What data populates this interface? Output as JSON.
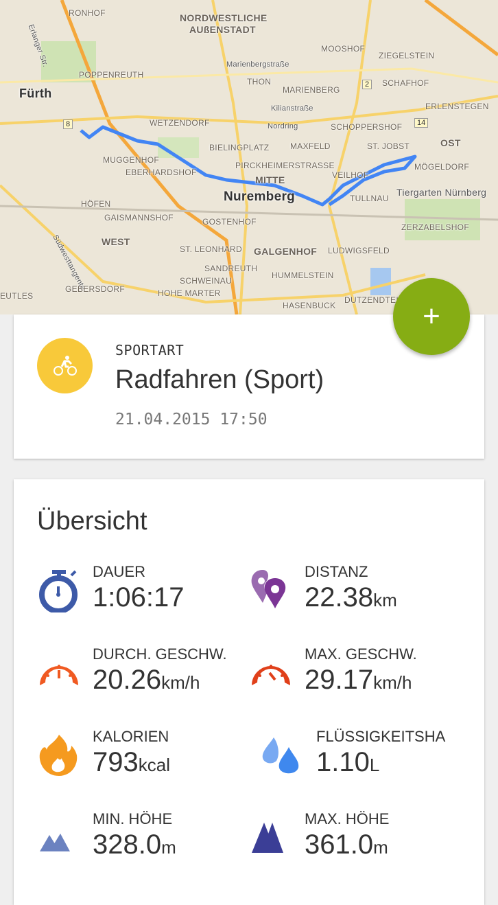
{
  "map": {
    "labels": [
      "RONHOF",
      "NORDWESTLICHE",
      "AUßENSTADT",
      "MOOSHOF",
      "ZIEGELSTEIN",
      "Marienbergstraße",
      "SCHAFHOF",
      "Fürth",
      "POPPENREUTH",
      "THON",
      "MARIENBERG",
      "Kilianstraße",
      "ERLENSTEGEN",
      "WETZENDORF",
      "Nordring",
      "SCHOPPERSHOF",
      "OST",
      "BIELINGPLATZ",
      "MAXFELD",
      "ST. JOBST",
      "MUGGENHOF",
      "PIRCKHEIMERSTRASSE",
      "EBERHARDSHOF",
      "MITTE",
      "VEILHOF",
      "MÖGELDORF",
      "Nuremberg",
      "TULLNAU",
      "Tiergarten Nürnberg",
      "HÖFEN",
      "GAISMANNSHOF",
      "GOSTENHOF",
      "ZERZABELSHOF",
      "WEST",
      "ST. LEONHARD",
      "GALGENHOF",
      "LUDWIGSFELD",
      "SANDREUTH",
      "Südwesttangente",
      "SCHWEINAU",
      "HUMMELSTEIN",
      "GEBERSDORF",
      "HOHE MARTER",
      "HASENBUCK",
      "DUTZENDTEICH",
      "EUTLES",
      "Erlanger Str."
    ],
    "road_badges": [
      "8",
      "2",
      "14"
    ],
    "route_color": "#4285f4"
  },
  "fab": {
    "label": "+",
    "color": "#86ad14"
  },
  "activity": {
    "icon": "bicycle-icon",
    "icon_color": "#f8c93a",
    "label": "SPORTART",
    "name": "Radfahren (Sport)",
    "datetime": "21.04.2015 17:50"
  },
  "overview": {
    "title": "Übersicht",
    "stats": [
      {
        "label": "DAUER",
        "value": "1:06:17",
        "unit": "",
        "icon": "stopwatch-icon",
        "color": "#3d5aa8"
      },
      {
        "label": "DISTANZ",
        "value": "22.38",
        "unit": "km",
        "icon": "map-pins-icon",
        "color": "#7b3595"
      },
      {
        "label": "DURCH. GESCHW.",
        "value": "20.26",
        "unit": "km/h",
        "icon": "speedometer-icon",
        "color": "#f05a22"
      },
      {
        "label": "MAX. GESCHW.",
        "value": "29.17",
        "unit": "km/h",
        "icon": "speedometer-max-icon",
        "color": "#e0401a"
      },
      {
        "label": "KALORIEN",
        "value": "793",
        "unit": "kcal",
        "icon": "flame-icon",
        "color": "#f59a1f"
      },
      {
        "label": "FLÜSSIGKEITSHA",
        "value": "1.10",
        "unit": "L",
        "icon": "water-drops-icon",
        "color": "#3f88ee"
      },
      {
        "label": "MIN. HÖHE",
        "value": "328.0",
        "unit": "m",
        "icon": "mountain-low-icon",
        "color": "#6b82c0"
      },
      {
        "label": "MAX. HÖHE",
        "value": "361.0",
        "unit": "m",
        "icon": "mountain-high-icon",
        "color": "#3b3e96"
      }
    ]
  }
}
